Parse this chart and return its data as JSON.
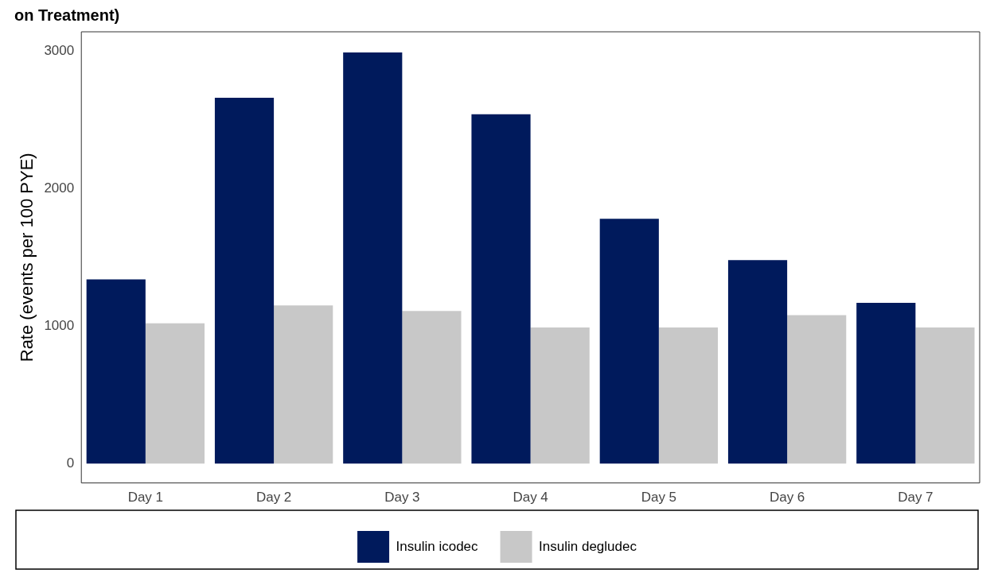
{
  "chart_data": {
    "type": "bar",
    "title": "on Treatment)",
    "ylabel": "Rate (events per 100 PYE)",
    "categories": [
      "Day 1",
      "Day 2",
      "Day 3",
      "Day 4",
      "Day 5",
      "Day 6",
      "Day 7"
    ],
    "series": [
      {
        "name": "Insulin icodec",
        "color": "#001a5c",
        "values": [
          1340,
          2660,
          2990,
          2540,
          1780,
          1480,
          1170
        ]
      },
      {
        "name": "Insulin degludec",
        "color": "#c8c8c8",
        "values": [
          1020,
          1150,
          1110,
          990,
          990,
          1080,
          990
        ]
      }
    ],
    "ylim": [
      -140,
      3140
    ],
    "yticks": [
      0,
      1000,
      2000,
      3000
    ],
    "grid": false,
    "legend": "bottom"
  }
}
